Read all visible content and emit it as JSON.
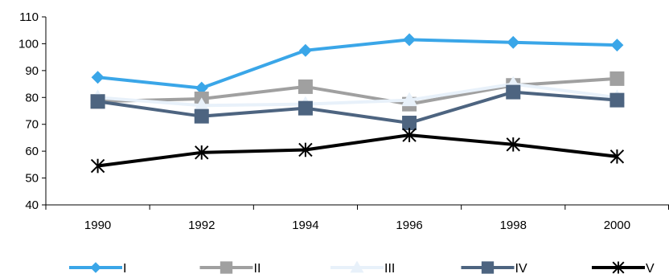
{
  "chart_data": {
    "type": "line",
    "title": "",
    "xlabel": "",
    "ylabel": "",
    "categories": [
      "1990",
      "1992",
      "1994",
      "1996",
      "1998",
      "2000"
    ],
    "ylim": [
      40,
      110
    ],
    "yticks": [
      "40",
      "50",
      "60",
      "70",
      "80",
      "90",
      "100",
      "110"
    ],
    "grid": false,
    "legend_position": "bottom",
    "series": [
      {
        "name": "I",
        "values": [
          87.5,
          83.5,
          97.5,
          101.5,
          100.5,
          99.5
        ],
        "color": "#3aa6e8",
        "marker": "diamond"
      },
      {
        "name": "II",
        "values": [
          78.5,
          79.5,
          84,
          77.5,
          84.5,
          87
        ],
        "color": "#a0a0a0",
        "marker": "square"
      },
      {
        "name": "III",
        "values": [
          80,
          77,
          77.5,
          79,
          85,
          80
        ],
        "color": "#e8f1fa",
        "marker": "triangle"
      },
      {
        "name": "IV",
        "values": [
          78.5,
          73,
          76,
          70.5,
          82,
          79
        ],
        "color": "#4d6480",
        "marker": "square"
      },
      {
        "name": "V",
        "values": [
          54.5,
          59.5,
          60.5,
          66,
          62.5,
          58
        ],
        "color": "#000000",
        "marker": "star"
      }
    ]
  }
}
